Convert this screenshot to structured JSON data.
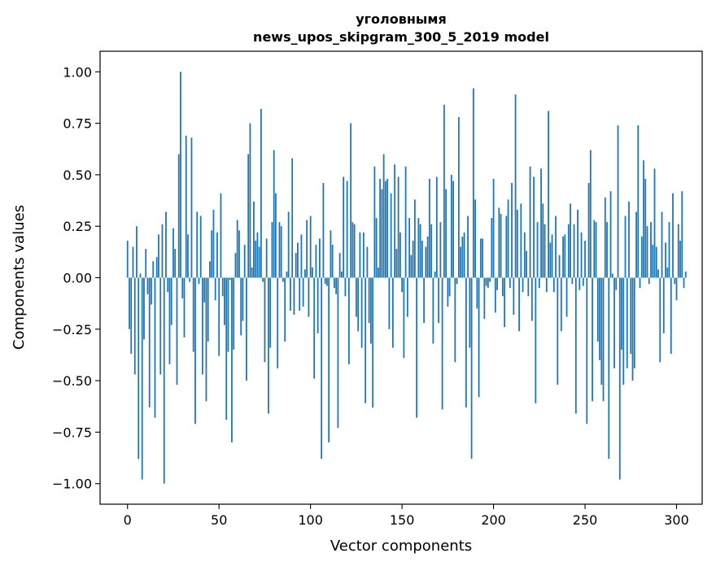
{
  "chart_data": {
    "type": "bar",
    "title_line1": "уголовнымя",
    "title_line2": "news_upos_skipgram_300_5_2019 model",
    "xlabel": "Vector components",
    "ylabel": "Components values",
    "xlim": [
      -15,
      314
    ],
    "ylim": [
      -1.1,
      1.1
    ],
    "xticks": [
      0,
      50,
      100,
      150,
      200,
      250,
      300
    ],
    "yticks": [
      -1.0,
      -0.75,
      -0.5,
      -0.25,
      0.0,
      0.25,
      0.5,
      0.75,
      1.0
    ],
    "ytick_labels": [
      "−1.00",
      "−0.75",
      "−0.50",
      "−0.25",
      "0.00",
      "0.25",
      "0.50",
      "0.75",
      "1.00"
    ],
    "bar_color": "#1f77b4",
    "values": [
      0.18,
      -0.25,
      -0.37,
      0.15,
      -0.47,
      0.25,
      -0.88,
      0.02,
      -0.98,
      -0.3,
      0.14,
      -0.08,
      -0.63,
      -0.13,
      0.08,
      -0.68,
      0.1,
      0.21,
      -0.47,
      0.26,
      -1.0,
      0.32,
      -0.07,
      -0.42,
      -0.23,
      0.24,
      0.14,
      -0.52,
      0.6,
      1.0,
      -0.1,
      -0.29,
      0.69,
      0.21,
      -0.02,
      0.68,
      -0.36,
      -0.71,
      0.32,
      -0.03,
      0.3,
      -0.47,
      -0.12,
      -0.6,
      -0.31,
      0.08,
      0.23,
      0.33,
      -0.11,
      0.22,
      -0.38,
      0.41,
      -0.09,
      -0.23,
      -0.69,
      -0.36,
      -0.01,
      -0.8,
      -0.35,
      0.12,
      0.28,
      0.23,
      -0.28,
      -0.21,
      0.16,
      -0.5,
      0.6,
      0.75,
      0.05,
      0.37,
      0.18,
      0.22,
      0.15,
      0.82,
      -0.02,
      -0.41,
      0.19,
      -0.66,
      -0.34,
      0.27,
      0.62,
      0.41,
      -0.44,
      0.27,
      0.25,
      -0.02,
      -0.31,
      0.03,
      0.32,
      -0.16,
      0.58,
      -0.18,
      0.12,
      0.17,
      -0.16,
      0.21,
      -0.14,
      0.04,
      0.28,
      -0.19,
      0.3,
      0.05,
      -0.49,
      0.16,
      -0.27,
      0.19,
      -0.88,
      0.46,
      -0.03,
      -0.04,
      -0.8,
      0.23,
      0.16,
      -0.05,
      -0.08,
      -0.73,
      0.12,
      0.03,
      0.49,
      -0.09,
      0.47,
      -0.42,
      0.75,
      0.27,
      0.26,
      -0.19,
      -0.26,
      0.22,
      -0.34,
      0.22,
      -0.61,
      0.15,
      -0.22,
      -0.32,
      -0.63,
      0.54,
      0.29,
      0.05,
      0.48,
      0.43,
      0.6,
      0.47,
      0.48,
      -0.25,
      0.41,
      -0.34,
      0.55,
      0.14,
      0.49,
      0.22,
      -0.07,
      -0.39,
      0.54,
      -0.19,
      0.29,
      0.11,
      0.18,
      0.38,
      -0.68,
      0.29,
      0.26,
      0.18,
      -0.22,
      0.15,
      0.2,
      0.48,
      0.26,
      -0.32,
      0.03,
      0.49,
      -0.22,
      0.27,
      -0.64,
      0.84,
      0.43,
      -0.14,
      -0.09,
      0.5,
      0.47,
      -0.41,
      -0.03,
      0.78,
      0.15,
      0.2,
      0.22,
      -0.63,
      0.3,
      -0.34,
      -0.88,
      0.92,
      0.38,
      -0.15,
      -0.58,
      0.19,
      0.19,
      -0.2,
      -0.04,
      -0.05,
      -0.02,
      0.29,
      0.48,
      -0.17,
      -0.06,
      0.34,
      0.31,
      -0.09,
      -0.24,
      0.3,
      0.38,
      -0.05,
      0.46,
      -0.18,
      0.89,
      0.33,
      -0.26,
      0.36,
      -0.07,
      0.22,
      0.13,
      -0.09,
      0.54,
      -0.21,
      0.49,
      -0.61,
      0.27,
      -0.05,
      0.53,
      0.36,
      0.26,
      -0.07,
      0.81,
      0.17,
      0.21,
      -0.07,
      0.3,
      -0.52,
      0.11,
      -0.26,
      0.2,
      0.21,
      -0.19,
      0.26,
      0.36,
      -0.03,
      0.26,
      -0.66,
      0.33,
      -0.06,
      0.22,
      -0.04,
      0.18,
      -0.71,
      0.46,
      0.62,
      -0.6,
      0.28,
      0.27,
      -0.31,
      -0.4,
      -0.52,
      -0.6,
      0.39,
      0.27,
      -0.88,
      0.42,
      0.02,
      -0.44,
      -0.06,
      0.74,
      -0.98,
      -0.35,
      -0.52,
      0.3,
      -0.44,
      0.37,
      -0.37,
      -0.5,
      -0.44,
      0.32,
      0.74,
      -0.05,
      0.2,
      0.57,
      0.48,
      0.25,
      -0.03,
      0.27,
      0.16,
      0.53,
      0.15,
      0.04,
      -0.41,
      0.32,
      -0.27,
      0.17,
      0.05,
      0.27,
      -0.37,
      0.41,
      -0.03,
      -0.11,
      0.26,
      0.18,
      0.42,
      -0.05,
      0.03
    ]
  }
}
